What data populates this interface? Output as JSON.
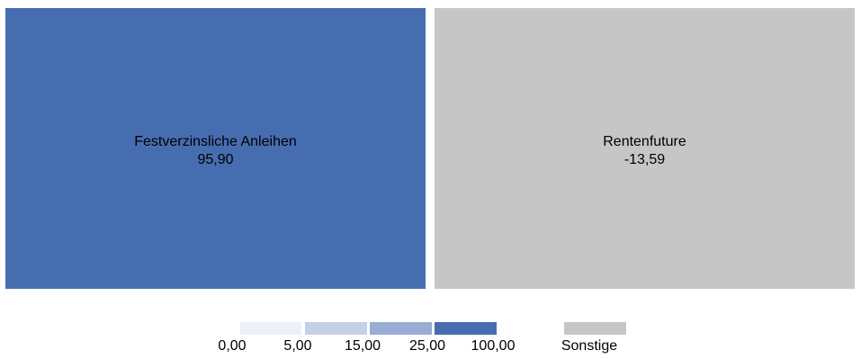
{
  "chart_data": {
    "type": "treemap",
    "tiles": [
      {
        "label": "Festverzinsliche Anleihen",
        "value_label": "95,90",
        "value": 95.9,
        "color": "#466DB0"
      },
      {
        "label": "Rentenfuture",
        "value_label": "-13,59",
        "value": -13.59,
        "color": "#C6C6C6"
      }
    ],
    "legend": {
      "scale": [
        {
          "label": "0,00",
          "color": "#EBF0F9"
        },
        {
          "label": "5,00",
          "color": "#C5D0E6"
        },
        {
          "label": "15,00",
          "color": "#99ACD5"
        },
        {
          "label": "25,00",
          "color": "#466DB0"
        },
        {
          "label": "100,00",
          "color": null
        }
      ],
      "other": {
        "label": "Sonstige",
        "color": "#C6C6C6"
      }
    }
  }
}
